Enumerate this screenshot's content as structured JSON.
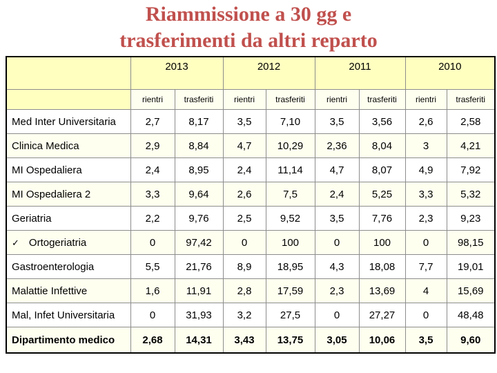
{
  "title_line1": "Riammissione a 30 gg e",
  "title_line2": "trasferimenti da altri reparto",
  "years": [
    "2013",
    "2012",
    "2011",
    "2010"
  ],
  "sub_headers": {
    "rientri": "rientri",
    "trasferiti": "trasferiti"
  },
  "rows": [
    {
      "name": "Med Inter Universitaria",
      "values": [
        "2,7",
        "8,17",
        "3,5",
        "7,10",
        "3,5",
        "3,56",
        "2,6",
        "2,58"
      ]
    },
    {
      "name": "Clinica Medica",
      "values": [
        "2,9",
        "8,84",
        "4,7",
        "10,29",
        "2,36",
        "8,04",
        "3",
        "4,21"
      ]
    },
    {
      "name": "MI Ospedaliera",
      "values": [
        "2,4",
        "8,95",
        "2,4",
        "11,14",
        "4,7",
        "8,07",
        "4,9",
        "7,92"
      ]
    },
    {
      "name": "MI Ospedaliera 2",
      "values": [
        "3,3",
        "9,64",
        "2,6",
        "7,5",
        "2,4",
        "5,25",
        "3,3",
        "5,32"
      ]
    },
    {
      "name": "Geriatria",
      "values": [
        "2,2",
        "9,76",
        "2,5",
        "9,52",
        "3,5",
        "7,76",
        "2,3",
        "9,23"
      ]
    },
    {
      "name": "Ortogeriatria",
      "check_icon": "✓",
      "values": [
        "0",
        "97,42",
        "0",
        "100",
        "0",
        "100",
        "0",
        "98,15"
      ]
    },
    {
      "name": "Gastroenterologia",
      "values": [
        "5,5",
        "21,76",
        "8,9",
        "18,95",
        "4,3",
        "18,08",
        "7,7",
        "19,01"
      ]
    },
    {
      "name": "Malattie Infettive",
      "values": [
        "1,6",
        "11,91",
        "2,8",
        "17,59",
        "2,3",
        "13,69",
        "4",
        "15,69"
      ]
    },
    {
      "name": "Mal, Infet Universitaria",
      "values": [
        "0",
        "31,93",
        "3,2",
        "27,5",
        "0",
        "27,27",
        "0",
        "48,48"
      ]
    }
  ],
  "total": {
    "name": "Dipartimento medico",
    "values": [
      "2,68",
      "14,31",
      "3,43",
      "13,75",
      "3,05",
      "10,06",
      "3,5",
      "9,60"
    ]
  }
}
